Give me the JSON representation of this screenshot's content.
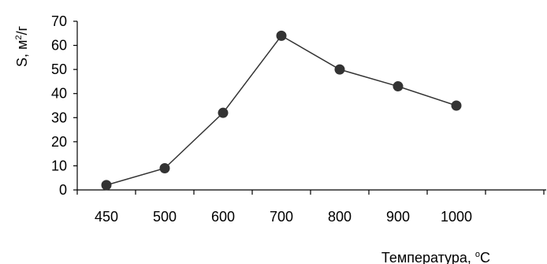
{
  "chart_data": {
    "type": "line",
    "categories": [
      "450",
      "500",
      "600",
      "700",
      "800",
      "900",
      "1000"
    ],
    "series": [
      {
        "values": [
          2,
          9,
          32,
          64,
          50,
          43,
          35
        ]
      }
    ],
    "xlabel_main": "Температура, ",
    "xlabel_sup": "o",
    "xlabel_unit": "С",
    "ylabel_main": "S, м",
    "ylabel_sup": "2",
    "ylabel_unit": "/г",
    "ylim": [
      0,
      70
    ],
    "yticks": [
      0,
      10,
      20,
      30,
      40,
      50,
      60,
      70
    ],
    "grid": false,
    "legend": "none",
    "colors": {
      "line": "#333333",
      "marker": "#333333",
      "axis": "#000000"
    }
  }
}
